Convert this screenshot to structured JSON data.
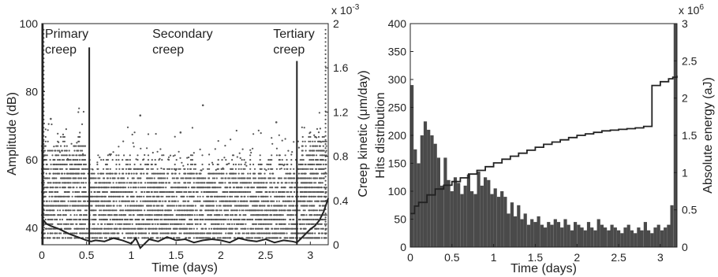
{
  "chart_data": [
    {
      "type": "scatter",
      "xlabel": "Time (days)",
      "ylabel": "Amplitude (dB)",
      "y2label": "Creep kinetic (μm/day)",
      "y2_multiplier_label": "x 10",
      "y2_multiplier_exp": "-3",
      "xlim": [
        0,
        3.2
      ],
      "ylim": [
        35,
        100
      ],
      "y2lim": [
        0,
        2
      ],
      "xticks": [
        "0",
        "0.5",
        "1",
        "1.5",
        "2",
        "2.5",
        "3"
      ],
      "yticks": [
        "40",
        "60",
        "80",
        "100"
      ],
      "y2ticks": [
        "0",
        "0.4",
        "0.8",
        "1.2",
        "1.6",
        "2"
      ],
      "marker_color": "#555555",
      "line_color": "#222222",
      "annotations": [
        {
          "line1": "Primary",
          "line2": "creep",
          "x": 0.0
        },
        {
          "line1": "Secondary",
          "line2": "creep",
          "x": 1.2
        },
        {
          "line1": "Tertiary",
          "line2": "creep",
          "x": 2.55
        }
      ],
      "phase_boundaries": [
        {
          "x": 0.53,
          "ytop": 93
        },
        {
          "x": 2.85,
          "ytop": 89
        }
      ],
      "series": [
        {
          "style": "line",
          "x": [
            0,
            0.02,
            0.05,
            0.1,
            0.2,
            0.3,
            0.4,
            0.5,
            0.55,
            0.6,
            0.7,
            0.8,
            0.9,
            1.0,
            1.05,
            1.1,
            1.2,
            1.3,
            1.4,
            1.5,
            1.6,
            1.7,
            1.8,
            1.9,
            2.0,
            2.1,
            2.2,
            2.3,
            2.4,
            2.5,
            2.6,
            2.7,
            2.8,
            2.85,
            2.9,
            2.95,
            3.0,
            3.05,
            3.1,
            3.15,
            3.2
          ],
          "y": [
            0.1,
            0.22,
            0.19,
            0.17,
            0.14,
            0.1,
            0.07,
            0.04,
            0.03,
            0.04,
            0.03,
            0.06,
            0.04,
            0.01,
            0.06,
            -0.03,
            0.05,
            0.03,
            0.07,
            0.04,
            0.05,
            0.02,
            0.04,
            0.05,
            0.04,
            0.02,
            0.06,
            0.04,
            0.03,
            0.05,
            0.02,
            0.04,
            0.03,
            0.02,
            0.06,
            0.1,
            0.14,
            0.17,
            0.22,
            0.3,
            0.42
          ]
        }
      ]
    },
    {
      "type": "bar",
      "xlabel": "Time (days)",
      "ylabel": "Hits distribution",
      "y2label": "Absolute energy (aJ)",
      "y2_multiplier_label": "x 10",
      "y2_multiplier_exp": "6",
      "xlim": [
        0,
        3.2
      ],
      "ylim": [
        0,
        400
      ],
      "y2lim": [
        0,
        3
      ],
      "xticks": [
        "0",
        "0.5",
        "1",
        "1.5",
        "2",
        "2.5",
        "3"
      ],
      "yticks": [
        "0",
        "50",
        "100",
        "150",
        "200",
        "250",
        "300",
        "350",
        "400"
      ],
      "y2ticks": [
        "0",
        "0.5",
        "1",
        "1.5",
        "2",
        "2.5",
        "3"
      ],
      "bar_color": "#4a4a4a",
      "line_color": "#222222",
      "series": [
        {
          "name": "Hits",
          "style": "bar",
          "bin_width": 0.04,
          "values": [
            290,
            175,
            150,
            200,
            225,
            210,
            200,
            185,
            160,
            110,
            160,
            120,
            100,
            125,
            115,
            95,
            110,
            130,
            100,
            95,
            135,
            110,
            125,
            120,
            95,
            105,
            90,
            100,
            90,
            60,
            80,
            55,
            75,
            50,
            60,
            40,
            50,
            45,
            55,
            40,
            35,
            45,
            40,
            50,
            45,
            35,
            50,
            40,
            30,
            45,
            40,
            35,
            30,
            45,
            35,
            30,
            50,
            40,
            35,
            30,
            40,
            35,
            30,
            25,
            35,
            40,
            30,
            25,
            35,
            30,
            45,
            30,
            25,
            35,
            40,
            30,
            35,
            40,
            75,
            400
          ]
        },
        {
          "name": "Absolute energy",
          "style": "step",
          "x": [
            0,
            0.05,
            0.1,
            0.2,
            0.3,
            0.4,
            0.5,
            0.6,
            0.7,
            0.8,
            0.9,
            1.0,
            1.1,
            1.2,
            1.3,
            1.4,
            1.5,
            1.6,
            1.7,
            1.8,
            1.9,
            2.0,
            2.1,
            2.2,
            2.3,
            2.4,
            2.5,
            2.6,
            2.7,
            2.8,
            2.85,
            2.9,
            3.0,
            3.1,
            3.15,
            3.2
          ],
          "y": [
            0.45,
            0.55,
            0.6,
            0.7,
            0.78,
            0.83,
            0.88,
            0.93,
            0.98,
            1.03,
            1.08,
            1.13,
            1.18,
            1.22,
            1.26,
            1.3,
            1.34,
            1.38,
            1.41,
            1.44,
            1.47,
            1.5,
            1.52,
            1.54,
            1.56,
            1.57,
            1.58,
            1.59,
            1.6,
            1.62,
            1.62,
            2.17,
            2.22,
            2.26,
            2.28,
            2.3
          ]
        }
      ]
    }
  ]
}
